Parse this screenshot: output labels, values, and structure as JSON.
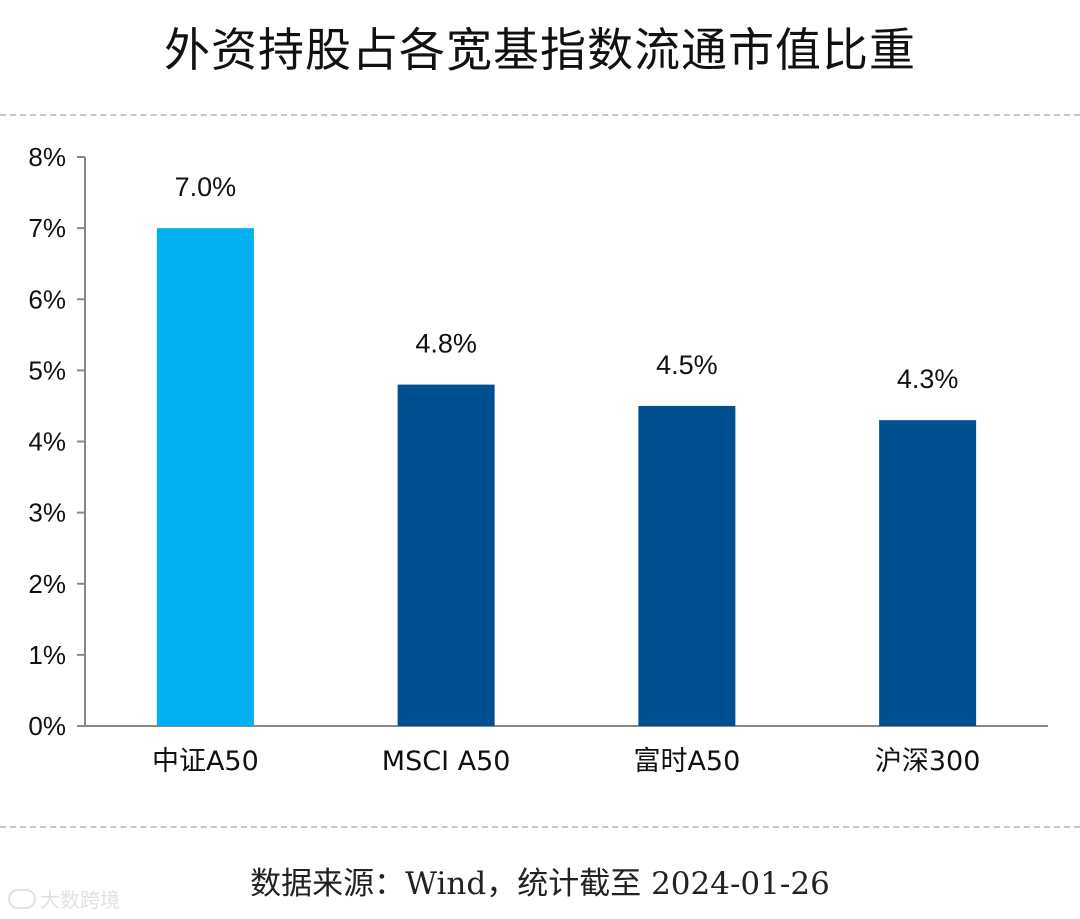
{
  "title": "外资持股占各宽基指数流通市值比重",
  "source": "数据来源：Wind，统计截至 2024-01-26",
  "watermark": "大数跨境",
  "colors": {
    "highlight": "#00B0F0",
    "bar": "#00508F",
    "axis": "#888888",
    "divider": "#c8c8c8"
  },
  "chart_data": {
    "type": "bar",
    "title": "外资持股占各宽基指数流通市值比重",
    "categories": [
      "中证A50",
      "MSCI A50",
      "富时A50",
      "沪深300"
    ],
    "values": [
      7.0,
      4.8,
      4.5,
      4.3
    ],
    "data_labels": [
      "7.0%",
      "4.8%",
      "4.5%",
      "4.3%"
    ],
    "highlight_index": 0,
    "ylim": [
      0,
      8
    ],
    "yticks": [
      0,
      1,
      2,
      3,
      4,
      5,
      6,
      7,
      8
    ],
    "ytick_labels": [
      "0%",
      "1%",
      "2%",
      "3%",
      "4%",
      "5%",
      "6%",
      "7%",
      "8%"
    ],
    "xlabel": "",
    "ylabel": "",
    "grid": false,
    "legend": "none"
  }
}
